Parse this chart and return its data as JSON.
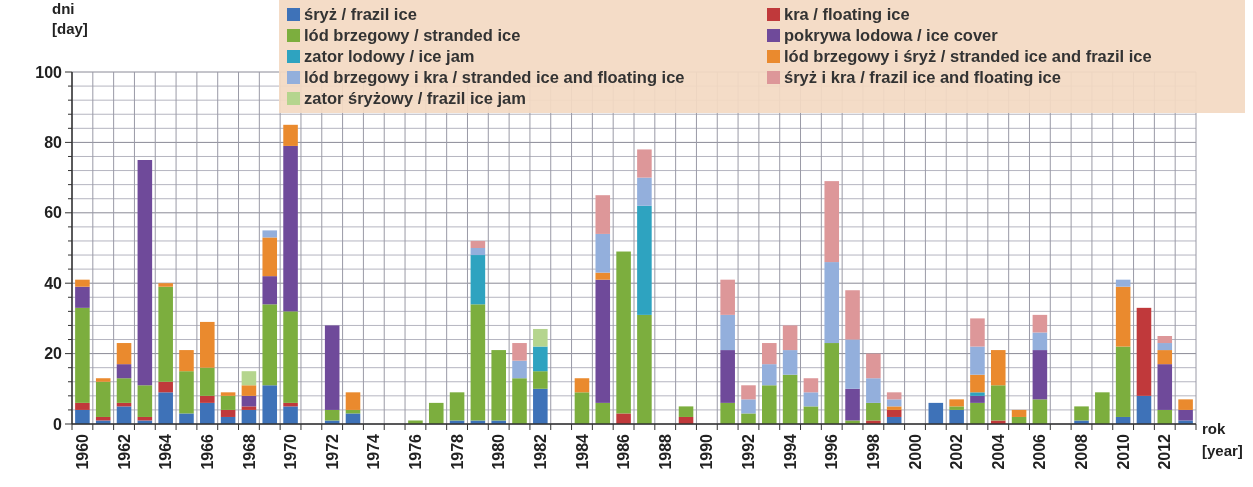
{
  "chart_data": {
    "type": "bar",
    "stacked": true,
    "ylabel": "dni\n[day]",
    "xlabel": "rok\n[year]",
    "categories": [
      "1960",
      null,
      "1962",
      null,
      "1964",
      null,
      "1966",
      null,
      "1968",
      null,
      "1970",
      null,
      "1972",
      null,
      "1974",
      null,
      "1976",
      null,
      "1978",
      null,
      "1980",
      null,
      "1982",
      null,
      "1984",
      null,
      "1986",
      null,
      "1988",
      null,
      "1990",
      null,
      "1992",
      null,
      "1994",
      null,
      "1996",
      null,
      "1998",
      null,
      "2000",
      null,
      "2002",
      null,
      "2004",
      null,
      "2006",
      null,
      "2008",
      null,
      "2010",
      null,
      "2012",
      null
    ],
    "ylim": [
      0,
      100
    ],
    "yticks": [
      0,
      {
        "value": 4,
        "label": null
      },
      {
        "value": 8,
        "label": null
      },
      {
        "value": 12,
        "label": null
      },
      {
        "value": 16,
        "label": null
      },
      20,
      {
        "value": 24,
        "label": null
      },
      {
        "value": 28,
        "label": null
      },
      {
        "value": 32,
        "label": null
      },
      {
        "value": 36,
        "label": null
      },
      40,
      {
        "value": 44,
        "label": null
      },
      {
        "value": 48,
        "label": null
      },
      {
        "value": 52,
        "label": null
      },
      {
        "value": 56,
        "label": null
      },
      60,
      {
        "value": 64,
        "label": null
      },
      {
        "value": 68,
        "label": null
      },
      {
        "value": 72,
        "label": null
      },
      {
        "value": 76,
        "label": null
      },
      80,
      {
        "value": 84,
        "label": null
      },
      {
        "value": 88,
        "label": null
      },
      {
        "value": 92,
        "label": null
      },
      {
        "value": 96,
        "label": null
      },
      100
    ],
    "grid": true,
    "legend": "top right",
    "series": [
      {
        "name": "śryż / frazil ice",
        "color": "#3e72b8",
        "values": [
          4,
          1,
          5,
          1,
          9,
          3,
          6,
          2,
          4,
          11,
          5,
          0,
          1,
          3,
          0,
          0,
          0,
          0,
          1,
          1,
          1,
          0,
          10,
          0,
          0,
          0,
          0,
          0,
          0,
          0,
          0,
          0,
          0,
          0,
          0,
          0,
          0,
          0,
          0,
          2,
          0,
          6,
          4,
          0,
          0,
          0,
          0,
          0,
          1,
          0,
          2,
          8,
          0,
          1
        ]
      },
      {
        "name": "kra / floating ice",
        "color": "#c0393b",
        "values": [
          2,
          1,
          1,
          1,
          3,
          0,
          2,
          2,
          1,
          0,
          1,
          0,
          0,
          0,
          0,
          0,
          0,
          0,
          0,
          0,
          0,
          0,
          0,
          0,
          0,
          0,
          3,
          0,
          0,
          2,
          0,
          0,
          0,
          0,
          0,
          0,
          0,
          0,
          1,
          2,
          0,
          0,
          0,
          0,
          1,
          0,
          0,
          0,
          0,
          0,
          0,
          25,
          0,
          0
        ]
      },
      {
        "name": "lód brzegowy / stranded ice",
        "color": "#7cae3e",
        "values": [
          27,
          10,
          7,
          9,
          27,
          12,
          8,
          4,
          0,
          23,
          26,
          0,
          3,
          1,
          0,
          0,
          1,
          6,
          8,
          33,
          20,
          13,
          5,
          0,
          9,
          6,
          46,
          31,
          0,
          3,
          0,
          6,
          3,
          11,
          14,
          5,
          23,
          1,
          5,
          0,
          0,
          0,
          1,
          6,
          10,
          2,
          7,
          0,
          4,
          9,
          20,
          0,
          4,
          0
        ]
      },
      {
        "name": "pokrywa lodowa / ice cover",
        "color": "#6f4a9a",
        "values": [
          6,
          0,
          4,
          64,
          0,
          0,
          0,
          0,
          3,
          8,
          47,
          0,
          24,
          0,
          0,
          0,
          0,
          0,
          0,
          0,
          0,
          0,
          0,
          0,
          0,
          35,
          0,
          0,
          0,
          0,
          0,
          15,
          0,
          0,
          0,
          0,
          0,
          9,
          0,
          0,
          0,
          0,
          0,
          2,
          0,
          0,
          14,
          0,
          0,
          0,
          0,
          0,
          13,
          3
        ]
      },
      {
        "name": "zator lodowy / ice jam",
        "color": "#2ea3c0",
        "values": [
          0,
          0,
          0,
          0,
          0,
          0,
          0,
          0,
          0,
          0,
          0,
          0,
          0,
          0,
          0,
          0,
          0,
          0,
          0,
          14,
          0,
          0,
          7,
          0,
          0,
          0,
          0,
          31,
          0,
          0,
          0,
          0,
          0,
          0,
          0,
          0,
          0,
          0,
          0,
          0,
          0,
          0,
          0,
          1,
          0,
          0,
          0,
          0,
          0,
          0,
          0,
          0,
          0,
          0
        ]
      },
      {
        "name": "lód brzegowy i śryż / stranded ice and frazil ice",
        "color": "#ea8a2e",
        "values": [
          2,
          1,
          6,
          0,
          1,
          6,
          13,
          1,
          3,
          11,
          6,
          0,
          0,
          5,
          0,
          0,
          0,
          0,
          0,
          0,
          0,
          0,
          0,
          0,
          4,
          2,
          0,
          0,
          0,
          0,
          0,
          0,
          0,
          0,
          0,
          0,
          0,
          0,
          0,
          1,
          0,
          0,
          2,
          5,
          10,
          2,
          0,
          0,
          0,
          0,
          17,
          0,
          4,
          3
        ]
      },
      {
        "name": "lód brzegowy i kra / stranded ice and floating ice",
        "color": "#93afdc",
        "values": [
          0,
          0,
          0,
          0,
          0,
          0,
          0,
          0,
          0,
          2,
          0,
          0,
          0,
          0,
          0,
          0,
          0,
          0,
          0,
          2,
          0,
          5,
          0,
          0,
          0,
          11,
          0,
          8,
          0,
          0,
          0,
          10,
          4,
          6,
          7,
          4,
          23,
          14,
          7,
          2,
          0,
          0,
          0,
          8,
          0,
          0,
          5,
          0,
          0,
          0,
          2,
          0,
          2,
          0
        ]
      },
      {
        "name": "śryż i kra / frazil ice and floating ice",
        "color": "#dd9799",
        "values": [
          0,
          0,
          0,
          0,
          0,
          0,
          0,
          0,
          0,
          0,
          0,
          0,
          0,
          0,
          0,
          0,
          0,
          0,
          0,
          2,
          0,
          5,
          0,
          0,
          0,
          11,
          0,
          8,
          0,
          0,
          0,
          10,
          4,
          6,
          7,
          4,
          23,
          14,
          7,
          2,
          0,
          0,
          0,
          8,
          0,
          0,
          5,
          0,
          0,
          0,
          0,
          0,
          2,
          0
        ]
      },
      {
        "name": "zator śryżowy / frazil ice jam",
        "color": "#b5d58e",
        "values": [
          0,
          0,
          0,
          0,
          0,
          0,
          0,
          0,
          4,
          0,
          0,
          0,
          0,
          0,
          0,
          0,
          0,
          0,
          0,
          0,
          0,
          0,
          5,
          0,
          0,
          0,
          0,
          0,
          0,
          0,
          0,
          0,
          0,
          0,
          0,
          0,
          0,
          0,
          0,
          0,
          0,
          0,
          0,
          0,
          0,
          0,
          0,
          0,
          0,
          0,
          0,
          0,
          0,
          0
        ]
      }
    ]
  }
}
